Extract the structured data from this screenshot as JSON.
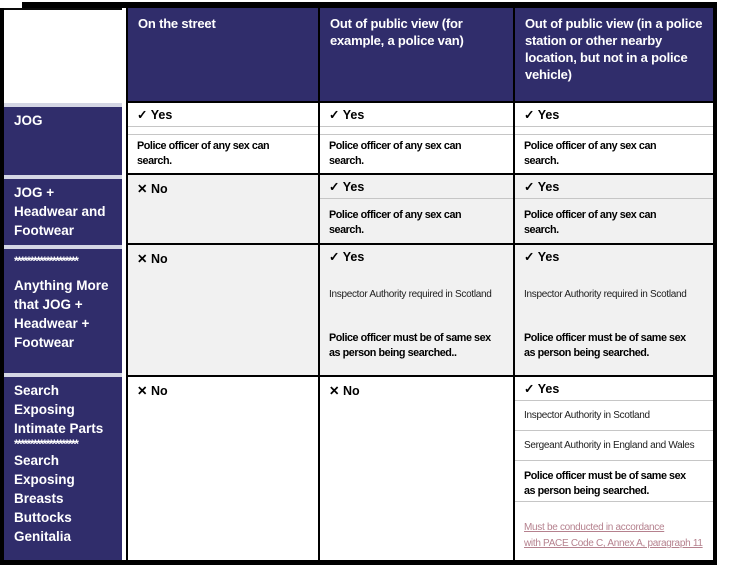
{
  "header": {
    "col_street": "On the street",
    "col_van": "Out of public view (for example, a police van)",
    "col_station": "Out of public view (in a police station or other nearby location, but not in a police vehicle)"
  },
  "row1": {
    "label_lines": [
      "JOG"
    ],
    "street": {
      "verdict": "✓ Yes",
      "note_lines": [
        "Police officer of any sex can",
        "search."
      ]
    },
    "van": {
      "verdict": "✓ Yes",
      "note_lines": [
        "Police officer of any sex can",
        "search."
      ]
    },
    "station": {
      "verdict": "✓ Yes",
      "note_lines": [
        "Police officer of any sex can",
        "search."
      ]
    }
  },
  "row2": {
    "label_lines": [
      "JOG +",
      "Headwear and",
      "Footwear"
    ],
    "street": {
      "verdict": "✕ No"
    },
    "van": {
      "verdict": "✓ Yes",
      "note_lines": [
        "Police officer of any sex can",
        "search."
      ]
    },
    "station": {
      "verdict": "✓ Yes",
      "note_lines": [
        "Police officer of any sex can",
        "search."
      ]
    }
  },
  "row3": {
    "stars": "********************",
    "label_lines": [
      "Anything More",
      "that JOG +",
      "Headwear +",
      "Footwear"
    ],
    "street": {
      "verdict": "✕ No"
    },
    "van": {
      "verdict": "✓ Yes",
      "authority": "Inspector Authority required in Scotland",
      "note_lines": [
        "Police officer must be of same sex",
        "as person being searched.."
      ]
    },
    "station": {
      "verdict": "✓ Yes",
      "authority": "Inspector Authority required in Scotland",
      "note_lines": [
        "Police officer must be of same sex",
        "as person being searched."
      ]
    }
  },
  "row4": {
    "label_top_lines": [
      "Search",
      "Exposing",
      "Intimate Parts"
    ],
    "stars": "********************",
    "label_bottom_lines": [
      "Search",
      "Exposing",
      "Breasts",
      "Buttocks",
      "Genitalia"
    ],
    "street": {
      "verdict": "✕ No"
    },
    "van": {
      "verdict": "✕ No"
    },
    "station": {
      "verdict": "✓ Yes",
      "authority_scotland": "Inspector Authority in Scotland",
      "authority_england": "Sergeant Authority in England and Wales",
      "note_lines": [
        "Police officer must be of same sex",
        "as person being searched."
      ],
      "link_lines": [
        "Must be conducted in accordance",
        "with PACE Code C, Annex A, paragraph 11"
      ]
    }
  },
  "colors": {
    "header_bg": "#302d6b",
    "row_header_bg": "#302d6b",
    "alt_row_bg": "#f1f1f1",
    "link_text": "#b5818e",
    "grid_border": "#000000",
    "cell_divider": "#c6c6c6"
  }
}
